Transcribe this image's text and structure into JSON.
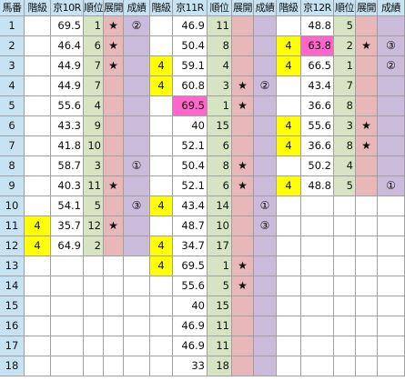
{
  "header": {
    "horse_no": "馬番",
    "races": [
      {
        "cols": [
          "階級",
          "京10R",
          "順位",
          "展開",
          "成績"
        ]
      },
      {
        "cols": [
          "階級",
          "京11R",
          "順位",
          "展開",
          "成績"
        ]
      },
      {
        "cols": [
          "階級",
          "京12R",
          "順位",
          "展開",
          "成績"
        ]
      }
    ]
  },
  "row_numbers": [
    "1",
    "2",
    "3",
    "4",
    "5",
    "6",
    "7",
    "8",
    "9",
    "10",
    "11",
    "12",
    "13",
    "14",
    "15",
    "16",
    "17",
    "18"
  ],
  "colors": {
    "header_bg": "#c6e2f3",
    "rank_bg": "#d6e4c3",
    "tenkai_bg": "#e8b7b7",
    "seiseki_bg": "#c9bbd9",
    "empty_bg": "#ffffff",
    "class_highlight": "#ffff00",
    "score_highlight": "#ff66cc"
  },
  "races": [
    {
      "name": "京10R",
      "rows": [
        {
          "kaikyu": "",
          "score": "69.5",
          "rank": "1",
          "tenkai": "★",
          "seiseki": "②"
        },
        {
          "kaikyu": "",
          "score": "46.4",
          "rank": "6",
          "tenkai": "★",
          "seiseki": ""
        },
        {
          "kaikyu": "",
          "score": "44.9",
          "rank": "7",
          "tenkai": "★",
          "seiseki": ""
        },
        {
          "kaikyu": "",
          "score": "44.9",
          "rank": "7",
          "tenkai": "",
          "seiseki": ""
        },
        {
          "kaikyu": "",
          "score": "55.6",
          "rank": "4",
          "tenkai": "",
          "seiseki": ""
        },
        {
          "kaikyu": "",
          "score": "43.3",
          "rank": "9",
          "tenkai": "",
          "seiseki": ""
        },
        {
          "kaikyu": "",
          "score": "41.8",
          "rank": "10",
          "tenkai": "",
          "seiseki": ""
        },
        {
          "kaikyu": "",
          "score": "58.7",
          "rank": "3",
          "tenkai": "",
          "seiseki": "①"
        },
        {
          "kaikyu": "",
          "score": "40.3",
          "rank": "11",
          "tenkai": "★",
          "seiseki": ""
        },
        {
          "kaikyu": "",
          "score": "54.1",
          "rank": "5",
          "tenkai": "",
          "seiseki": "③"
        },
        {
          "kaikyu": "4",
          "score": "35.7",
          "rank": "12",
          "tenkai": "★",
          "seiseki": ""
        },
        {
          "kaikyu": "4",
          "score": "64.9",
          "rank": "2",
          "tenkai": "",
          "seiseki": ""
        }
      ]
    },
    {
      "name": "京11R",
      "rows": [
        {
          "kaikyu": "",
          "score": "46.9",
          "rank": "11",
          "tenkai": "",
          "seiseki": ""
        },
        {
          "kaikyu": "",
          "score": "50.4",
          "rank": "8",
          "tenkai": "",
          "seiseki": ""
        },
        {
          "kaikyu": "4",
          "score": "59.1",
          "rank": "4",
          "tenkai": "",
          "seiseki": ""
        },
        {
          "kaikyu": "4",
          "score": "60.8",
          "rank": "3",
          "tenkai": "★",
          "seiseki": "②"
        },
        {
          "kaikyu": "",
          "score": "69.5",
          "rank": "1",
          "tenkai": "★",
          "seiseki": "",
          "score_hl": true
        },
        {
          "kaikyu": "",
          "score": "40",
          "rank": "15",
          "tenkai": "",
          "seiseki": ""
        },
        {
          "kaikyu": "",
          "score": "52.1",
          "rank": "6",
          "tenkai": "",
          "seiseki": ""
        },
        {
          "kaikyu": "",
          "score": "50.4",
          "rank": "8",
          "tenkai": "★",
          "seiseki": ""
        },
        {
          "kaikyu": "",
          "score": "52.1",
          "rank": "6",
          "tenkai": "★",
          "seiseki": ""
        },
        {
          "kaikyu": "4",
          "score": "43.4",
          "rank": "14",
          "tenkai": "",
          "seiseki": "①"
        },
        {
          "kaikyu": "",
          "score": "48.7",
          "rank": "10",
          "tenkai": "",
          "seiseki": "③"
        },
        {
          "kaikyu": "4",
          "score": "34.7",
          "rank": "17",
          "tenkai": "",
          "seiseki": ""
        },
        {
          "kaikyu": "4",
          "score": "69.5",
          "rank": "1",
          "tenkai": "★",
          "seiseki": ""
        },
        {
          "kaikyu": "",
          "score": "55.6",
          "rank": "5",
          "tenkai": "★",
          "seiseki": ""
        },
        {
          "kaikyu": "",
          "score": "40",
          "rank": "15",
          "tenkai": "",
          "seiseki": ""
        },
        {
          "kaikyu": "",
          "score": "46.9",
          "rank": "11",
          "tenkai": "",
          "seiseki": ""
        },
        {
          "kaikyu": "",
          "score": "46.9",
          "rank": "11",
          "tenkai": "",
          "seiseki": ""
        },
        {
          "kaikyu": "",
          "score": "33",
          "rank": "18",
          "tenkai": "",
          "seiseki": ""
        }
      ]
    },
    {
      "name": "京12R",
      "rows": [
        {
          "kaikyu": "",
          "score": "48.8",
          "rank": "5",
          "tenkai": "",
          "seiseki": ""
        },
        {
          "kaikyu": "4",
          "score": "63.8",
          "rank": "2",
          "tenkai": "★",
          "seiseki": "③",
          "score_hl": true
        },
        {
          "kaikyu": "4",
          "score": "66.5",
          "rank": "1",
          "tenkai": "",
          "seiseki": "②"
        },
        {
          "kaikyu": "",
          "score": "43.4",
          "rank": "7",
          "tenkai": "",
          "seiseki": ""
        },
        {
          "kaikyu": "",
          "score": "36.6",
          "rank": "8",
          "tenkai": "",
          "seiseki": ""
        },
        {
          "kaikyu": "4",
          "score": "55.6",
          "rank": "3",
          "tenkai": "★",
          "seiseki": ""
        },
        {
          "kaikyu": "4",
          "score": "36.6",
          "rank": "8",
          "tenkai": "★",
          "seiseki": ""
        },
        {
          "kaikyu": "",
          "score": "50.2",
          "rank": "4",
          "tenkai": "",
          "seiseki": ""
        },
        {
          "kaikyu": "4",
          "score": "48.8",
          "rank": "5",
          "tenkai": "",
          "seiseki": "①"
        }
      ]
    }
  ]
}
